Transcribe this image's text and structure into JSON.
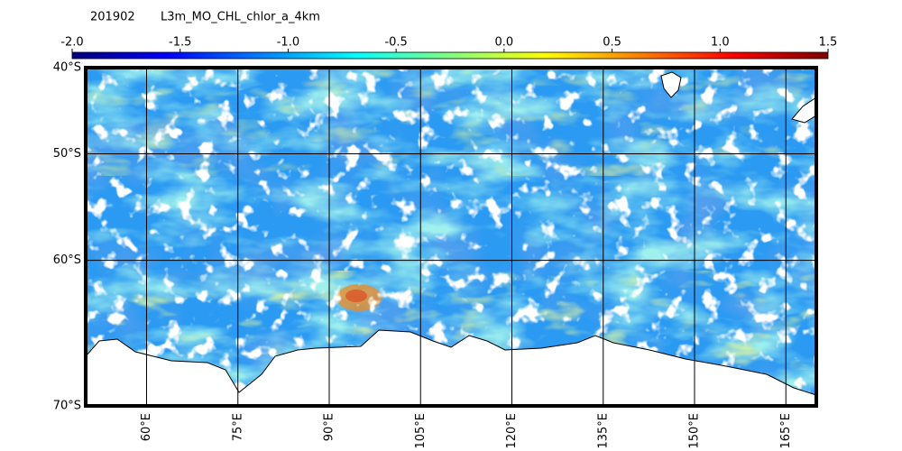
{
  "title": {
    "date": "201902",
    "product": "L3m_MO_CHL_chlor_a_4km"
  },
  "colorbar": {
    "lim": [
      -2,
      1.5
    ],
    "ticks": [
      {
        "value": -2,
        "label": "-2.0"
      },
      {
        "value": -1.5,
        "label": "-1.5"
      },
      {
        "value": -1,
        "label": "-1.0"
      },
      {
        "value": -0.5,
        "label": "-0.5"
      },
      {
        "value": 0,
        "label": "0.0"
      },
      {
        "value": 0.5,
        "label": "0.5"
      },
      {
        "value": 1,
        "label": "1.0"
      },
      {
        "value": 1.5,
        "label": "1.5"
      }
    ]
  },
  "map": {
    "lon_lim": [
      50,
      170
    ],
    "lat_lim": [
      -40,
      -70
    ],
    "lat_ticks": [
      {
        "value": -40,
        "label": "40°S"
      },
      {
        "value": -50,
        "label": "50°S"
      },
      {
        "value": -60,
        "label": "60°S"
      },
      {
        "value": -70,
        "label": "70°S"
      }
    ],
    "lon_ticks": [
      {
        "value": 60,
        "label": "60°E"
      },
      {
        "value": 75,
        "label": "75°E"
      },
      {
        "value": 90,
        "label": "90°E"
      },
      {
        "value": 105,
        "label": "105°E"
      },
      {
        "value": 120,
        "label": "120°E"
      },
      {
        "value": 135,
        "label": "135°E"
      },
      {
        "value": 150,
        "label": "150°E"
      },
      {
        "value": 165,
        "label": "165°E"
      }
    ]
  }
}
